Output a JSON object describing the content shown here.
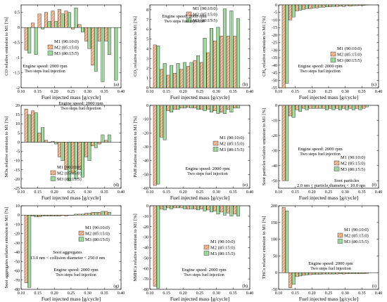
{
  "colors": {
    "M2": "#e8a77c",
    "M3": "#8fcf8c",
    "axis": "#000000"
  },
  "legend_names": [
    "M1 (90:10:0)",
    "M2 (85:15:0)",
    "M3 (80:15:5)"
  ],
  "chart_data": [
    {
      "type": "bar",
      "panel": "(a)",
      "ylabel": "CO relative emission to M1 [%]",
      "xlabel": "Fuel injected mass  [g/cycle]",
      "xlim": [
        0.1,
        0.4
      ],
      "ylim": [
        -2.0,
        0.75
      ],
      "yticks": [
        -2.0,
        -1.5,
        -1.0,
        -0.5,
        0.0,
        0.5
      ],
      "xticks": [
        0.1,
        0.15,
        0.2,
        0.25,
        0.3,
        0.35,
        0.4
      ],
      "x": [
        0.12,
        0.14,
        0.16,
        0.18,
        0.2,
        0.22,
        0.24,
        0.26,
        0.28,
        0.3,
        0.32,
        0.34,
        0.36,
        0.38
      ],
      "series": [
        {
          "name": "M2 (85:15:0)",
          "values": [
            -0.75,
            0.15,
            0.45,
            0.5,
            0.55,
            0.6,
            0.55,
            -0.05,
            0.1,
            -0.45,
            -1.25,
            -0.45,
            -0.45,
            null
          ]
        },
        {
          "name": "M3 (80:15:5)",
          "values": [
            -0.85,
            -0.9,
            -0.05,
            0.2,
            0.2,
            0.45,
            0.5,
            0.65,
            -0.15,
            -0.7,
            -1.45,
            -1.8,
            -0.9,
            -1.75
          ]
        }
      ],
      "annotations": [
        "Engine speed: 2000 rpm",
        "Two steps fuel injection"
      ]
    },
    {
      "type": "bar",
      "panel": "(b)",
      "ylabel": "CO₂ relative emission to M1 [%]",
      "xlabel": "Fuel injected mass  [g/cycle]",
      "xlim": [
        0.1,
        0.4
      ],
      "ylim": [
        0,
        8.5
      ],
      "yticks": [
        0,
        1,
        2,
        3,
        4,
        5,
        6,
        7,
        8
      ],
      "xticks": [
        0.1,
        0.15,
        0.2,
        0.25,
        0.3,
        0.35,
        0.4
      ],
      "x": [
        0.12,
        0.14,
        0.16,
        0.18,
        0.2,
        0.22,
        0.24,
        0.26,
        0.28,
        0.3,
        0.32,
        0.34,
        0.36,
        0.38
      ],
      "series": [
        {
          "name": "M2 (85:15:0)",
          "values": [
            4.4,
            1.9,
            1.3,
            1.5,
            1.9,
            2.2,
            2.8,
            2.6,
            3.6,
            4.8,
            5.3,
            5.3,
            5.3,
            null
          ]
        },
        {
          "name": "M3 (80:15:5)",
          "values": [
            4.3,
            2.5,
            2.3,
            2.5,
            2.6,
            2.6,
            3.3,
            5.1,
            6.1,
            6.2,
            8.1,
            7.9,
            7.1,
            null
          ]
        }
      ],
      "annotations": [
        "Engine speed: 2000 rpm",
        "Two steps fuel injection"
      ]
    },
    {
      "type": "bar",
      "panel": "(c)",
      "ylabel": "CH₄ relative emission to M1 [%]",
      "xlabel": "Fuel injected mass  [g/cycle]",
      "xlim": [
        0.1,
        0.4
      ],
      "ylim": [
        -55,
        0
      ],
      "yticks": [
        -55,
        -50,
        -45,
        -40,
        -35,
        -30,
        -25,
        -20,
        -15,
        -10,
        -5,
        0
      ],
      "xticks": [
        0.1,
        0.15,
        0.2,
        0.25,
        0.3,
        0.35,
        0.4
      ],
      "x": [
        0.12,
        0.14,
        0.16,
        0.18,
        0.2,
        0.22,
        0.24,
        0.26,
        0.28,
        0.3,
        0.32,
        0.34,
        0.36,
        0.38
      ],
      "series": [
        {
          "name": "M2 (85:15:0)",
          "values": [
            -55,
            -10,
            -4,
            -3,
            -2.5,
            -2,
            -1.5,
            -1.2,
            -1,
            -1,
            -0.8,
            -0.5,
            -0.3,
            null
          ]
        },
        {
          "name": "M3 (80:15:5)",
          "values": [
            -52,
            -8,
            -3.5,
            -2.5,
            -2,
            -1.5,
            -1.2,
            -1,
            -0.8,
            -0.5,
            -0.5,
            -0.4,
            0,
            null
          ]
        }
      ],
      "annotations": [
        "Engine speed: 2000 rpm",
        "Two steps fuel injection"
      ]
    },
    {
      "type": "bar",
      "panel": "(d)",
      "ylabel": "NOx relative emission to M1 [%]",
      "xlabel": "Fuel injected mass  [g/cycle]",
      "xlim": [
        0.1,
        0.4
      ],
      "ylim": [
        -25,
        20
      ],
      "yticks": [
        -25,
        -20,
        -15,
        -10,
        -5,
        0,
        5,
        10,
        15,
        20
      ],
      "xticks": [
        0.1,
        0.15,
        0.2,
        0.25,
        0.3,
        0.35,
        0.4
      ],
      "x": [
        0.12,
        0.14,
        0.16,
        0.18,
        0.2,
        0.22,
        0.24,
        0.26,
        0.28,
        0.3,
        0.32,
        0.34,
        0.36,
        0.38
      ],
      "series": [
        {
          "name": "M2 (85:15:0)",
          "values": [
            18,
            17,
            5,
            1,
            0.5,
            -8,
            -15,
            -17,
            -15,
            -8,
            -2,
            -1,
            1,
            null
          ]
        },
        {
          "name": "M3 (80:15:5)",
          "values": [
            15,
            16,
            8,
            0,
            -1,
            -10,
            -21,
            -20,
            -19,
            -10,
            -3,
            4,
            4,
            null
          ]
        }
      ],
      "annotations": [
        "Engine speed: 2000 rpm",
        "Two steps fuel injection"
      ]
    },
    {
      "type": "bar",
      "panel": "(e)",
      "ylabel": "PAH relative emission to M1 [%]",
      "xlabel": "Fuel injected mass  [g/cycle]",
      "xlim": [
        0.1,
        0.4
      ],
      "ylim": [
        -60,
        0
      ],
      "yticks": [
        -60,
        -50,
        -40,
        -30,
        -20,
        -10,
        0
      ],
      "xticks": [
        0.1,
        0.15,
        0.2,
        0.25,
        0.3,
        0.35,
        0.4
      ],
      "x": [
        0.12,
        0.14,
        0.16,
        0.18,
        0.2,
        0.22,
        0.24,
        0.26,
        0.28,
        0.3,
        0.32,
        0.34,
        0.36,
        0.38
      ],
      "series": [
        {
          "name": "M2 (85:15:0)",
          "values": [
            -58,
            -23,
            -4,
            -3,
            -2,
            -1.5,
            -2,
            -3,
            -3,
            -4,
            -5,
            -3,
            -2,
            null
          ]
        },
        {
          "name": "M3 (80:15:5)",
          "values": [
            -57,
            -25,
            -5,
            -3,
            -2,
            -2,
            -3,
            -4,
            -5,
            -6,
            -6,
            -5,
            -2,
            null
          ]
        }
      ],
      "annotations": [
        "Engine speed: 2000 rpm",
        "Two steps fuel injection"
      ]
    },
    {
      "type": "bar",
      "panel": "(f)",
      "ylabel": "Soot particles relative emission to M1 [%]",
      "xlabel": "Fuel injected mass  [g/cycle]",
      "xlim": [
        0.1,
        0.4
      ],
      "ylim": [
        -55,
        0
      ],
      "yticks": [
        -50,
        -40,
        -30,
        -20,
        -10,
        0
      ],
      "xticks": [
        0.1,
        0.15,
        0.2,
        0.25,
        0.3,
        0.35,
        0.4
      ],
      "x": [
        0.12,
        0.14,
        0.16,
        0.18,
        0.2,
        0.22,
        0.24,
        0.26,
        0.28,
        0.3,
        0.32,
        0.34,
        0.36,
        0.38
      ],
      "series": [
        {
          "name": "M2 (85:15:0)",
          "values": [
            -50,
            -7,
            -3,
            -2,
            -2,
            -2,
            -2,
            -2,
            -2,
            -2,
            -2,
            -2,
            -2,
            null
          ]
        },
        {
          "name": "M3 (80:15:5)",
          "values": [
            -50,
            -8,
            -4,
            -3,
            -2,
            -2,
            -3,
            -3,
            -3,
            -3,
            -3,
            -3,
            -1,
            null
          ]
        }
      ],
      "annotations": [
        "Engine speed: 2000 rpm",
        "Two steps fuel injection",
        "Soot particles",
        "2.0 nm < particle diameter < 10.0 nm"
      ]
    },
    {
      "type": "bar",
      "panel": "(g)",
      "ylabel": "Soot aggregates relative emission to M1 [%]",
      "xlabel": "Fuel injected mass  [g/cycle]",
      "xlim": [
        0.1,
        0.4
      ],
      "ylim": [
        -80,
        10
      ],
      "yticks": [
        -80,
        -70,
        -60,
        -50,
        -40,
        -30,
        -20,
        -10,
        0,
        10
      ],
      "xticks": [
        0.1,
        0.15,
        0.2,
        0.25,
        0.3,
        0.35,
        0.4
      ],
      "x": [
        0.12,
        0.14,
        0.16,
        0.18,
        0.2,
        0.22,
        0.24,
        0.26,
        0.28,
        0.3,
        0.32,
        0.34,
        0.36,
        0.38
      ],
      "series": [
        {
          "name": "M2 (85:15:0)",
          "values": [
            -73,
            -1,
            -2,
            -1,
            -1,
            -1,
            -1,
            0,
            1,
            2,
            3,
            3,
            4,
            null
          ]
        },
        {
          "name": "M3 (80:15:5)",
          "values": [
            -78,
            -2,
            -1,
            -1,
            -1,
            0,
            0,
            1,
            1,
            2,
            3,
            4,
            3,
            null
          ]
        }
      ],
      "annotations": [
        "Engine speed: 2000 rpm",
        "Two steps fuel injection",
        "Soot aggregates",
        "13.0 nm < collision diameter < 250.0 nm"
      ]
    },
    {
      "type": "bar",
      "panel": "(h)",
      "ylabel": "NMHCs relative emission to M1 [%]",
      "xlabel": "Fuel injected mass  [g/cycle]",
      "xlim": [
        0.1,
        0.4
      ],
      "ylim": [
        -80,
        0
      ],
      "yticks": [
        -80,
        -70,
        -60,
        -50,
        -40,
        -30,
        -20,
        -10,
        0
      ],
      "xticks": [
        0.1,
        0.15,
        0.2,
        0.25,
        0.3,
        0.35,
        0.4
      ],
      "x": [
        0.12,
        0.14,
        0.16,
        0.18,
        0.2,
        0.22,
        0.24,
        0.26,
        0.28,
        0.3,
        0.32,
        0.34,
        0.36,
        0.38
      ],
      "series": [
        {
          "name": "M2 (85:15:0)",
          "values": [
            -77,
            -3,
            -2,
            -2,
            -2,
            -3,
            -3,
            -3,
            -4,
            -5,
            -6,
            -7,
            -8,
            null
          ]
        },
        {
          "name": "M3 (80:15:5)",
          "values": [
            -79,
            -4,
            -3,
            -2,
            -3,
            -3,
            -4,
            -5,
            -6,
            -8,
            -9,
            -10,
            -10,
            null
          ]
        }
      ],
      "annotations": [
        "Engine speed: 2000 rpm",
        "Two steps fuel injection"
      ]
    },
    {
      "type": "bar",
      "panel": "(i)",
      "ylabel": "THCs relative emission to M1 [%]",
      "xlabel": "Fuel injected mass  [g/cycle]",
      "xlim": [
        0.1,
        0.4
      ],
      "ylim": [
        -50,
        200
      ],
      "yticks": [
        -50,
        0,
        50,
        100,
        150,
        200
      ],
      "xticks": [
        0.1,
        0.15,
        0.2,
        0.25,
        0.3,
        0.35,
        0.4
      ],
      "x": [
        0.12,
        0.14,
        0.16,
        0.18,
        0.2,
        0.22,
        0.24,
        0.26,
        0.28,
        0.3,
        0.32,
        0.34,
        0.36,
        0.38
      ],
      "series": [
        {
          "name": "M2 (85:15:0)",
          "values": [
            195,
            -45,
            -12,
            -8,
            -6,
            -5,
            -4,
            -4,
            -4,
            -4,
            -3,
            -3,
            -3,
            null
          ]
        },
        {
          "name": "M3 (80:15:5)",
          "values": [
            185,
            -35,
            -10,
            -7,
            -5,
            -5,
            -4,
            -4,
            -3,
            -3,
            -3,
            -3,
            -2,
            null
          ]
        }
      ],
      "annotations": [
        "Engine speed: 2000 rpm",
        "Two steps fuel injection"
      ]
    }
  ]
}
